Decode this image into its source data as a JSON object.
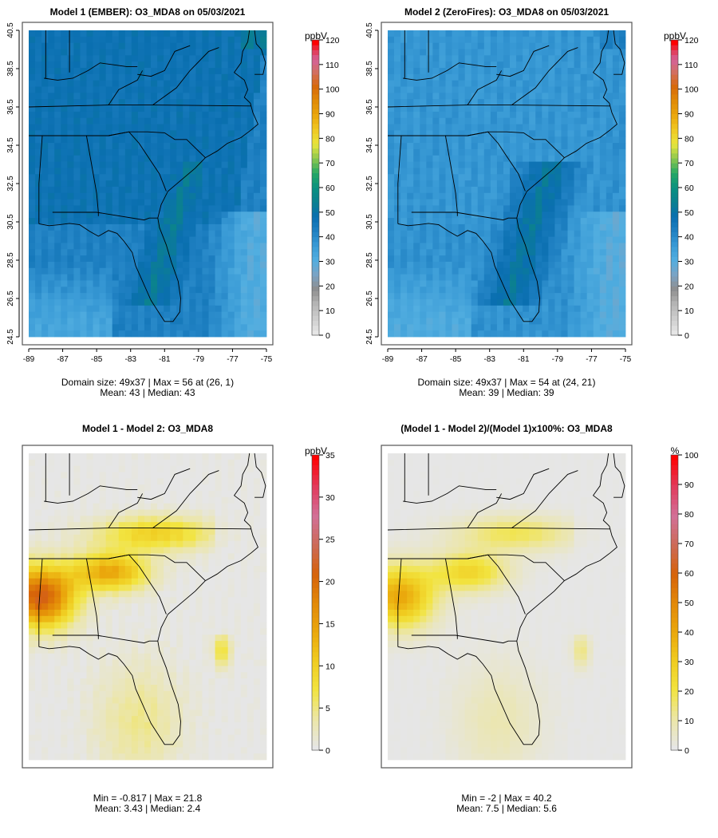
{
  "chart_data": [
    {
      "type": "heatmap",
      "id": "model1",
      "title": "Model 1 (EMBER): O3_MDA8 on 05/03/2021",
      "colorbar": {
        "unit": "ppbV",
        "min": 0,
        "max": 120,
        "ticks": [
          0,
          10,
          20,
          30,
          40,
          50,
          60,
          70,
          80,
          90,
          100,
          110,
          120
        ],
        "palette": "o3"
      },
      "xticks": [
        "-89",
        "-87",
        "-85",
        "-83",
        "-81",
        "-79",
        "-77",
        "-75"
      ],
      "yticks": [
        "24.5",
        "26.5",
        "28.5",
        "30.5",
        "32.5",
        "34.5",
        "36.5",
        "38.5",
        "40.5"
      ],
      "xlim": [
        -89,
        -75
      ],
      "ylim": [
        24.5,
        40.5
      ],
      "field": {
        "base": 42,
        "land": 47,
        "coast": 53,
        "gulf": 40,
        "ocean_se": 30,
        "southwest": 33
      },
      "caption_lines": [
        "Domain size: 49x37 | Max = 56 at (26, 1)",
        "Mean: 43 |  Median: 43"
      ]
    },
    {
      "type": "heatmap",
      "id": "model2",
      "title": "Model 2 (ZeroFires): O3_MDA8 on 05/03/2021",
      "colorbar": {
        "unit": "ppbV",
        "min": 0,
        "max": 120,
        "ticks": [
          0,
          10,
          20,
          30,
          40,
          50,
          60,
          70,
          80,
          90,
          100,
          110,
          120
        ],
        "palette": "o3"
      },
      "xticks": [
        "-89",
        "-87",
        "-85",
        "-83",
        "-81",
        "-79",
        "-77",
        "-75"
      ],
      "yticks": [
        "24.5",
        "26.5",
        "28.5",
        "30.5",
        "32.5",
        "34.5",
        "36.5",
        "38.5",
        "40.5"
      ],
      "xlim": [
        -89,
        -75
      ],
      "ylim": [
        24.5,
        40.5
      ],
      "field": {
        "base": 38,
        "land": 37,
        "coast": 52,
        "gulf": 37,
        "ocean_se": 29,
        "southwest": 31
      },
      "caption_lines": [
        "Domain size: 49x37 | Max = 54 at (24, 21)",
        "Mean: 39 |  Median: 39"
      ]
    },
    {
      "type": "heatmap",
      "id": "diff",
      "title": "Model 1 - Model 2: O3_MDA8",
      "colorbar": {
        "unit": "ppbV",
        "min": 0,
        "max": 35,
        "ticks": [
          0,
          5,
          10,
          15,
          20,
          25,
          30,
          35
        ],
        "palette": "diff"
      },
      "xlim": [
        -89,
        -75
      ],
      "ylim": [
        24.5,
        40.5
      ],
      "field": {
        "peak": 21.8,
        "scale": 1
      },
      "caption_lines": [
        "Min = -0.817 | Max = 21.8",
        "Mean: 3.43 |  Median: 2.4"
      ]
    },
    {
      "type": "heatmap",
      "id": "pct",
      "title": "(Model 1 - Model 2)/(Model 1)x100%: O3_MDA8",
      "colorbar": {
        "unit": "%",
        "min": 0,
        "max": 100,
        "ticks": [
          0,
          10,
          20,
          30,
          40,
          50,
          60,
          70,
          80,
          90,
          100
        ],
        "palette": "diff"
      },
      "xlim": [
        -89,
        -75
      ],
      "ylim": [
        24.5,
        40.5
      ],
      "field": {
        "peak": 40.2,
        "scale": 1
      },
      "caption_lines": [
        "Min = -2 | Max = 40.2",
        "Mean: 7.5 |  Median: 5.6"
      ]
    }
  ]
}
